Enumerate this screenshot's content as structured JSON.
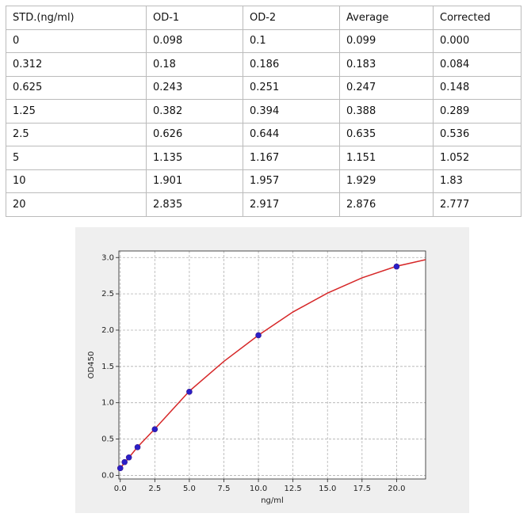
{
  "table": {
    "header": [
      "STD.(ng/ml)",
      "OD-1",
      "OD-2",
      "Average",
      "Corrected"
    ],
    "rows": [
      [
        "0",
        "0.098",
        "0.1",
        "0.099",
        "0.000"
      ],
      [
        "0.312",
        "0.18",
        "0.186",
        "0.183",
        "0.084"
      ],
      [
        "0.625",
        "0.243",
        "0.251",
        "0.247",
        "0.148"
      ],
      [
        "1.25",
        "0.382",
        "0.394",
        "0.388",
        "0.289"
      ],
      [
        "2.5",
        "0.626",
        "0.644",
        "0.635",
        "0.536"
      ],
      [
        "5",
        "1.135",
        "1.167",
        "1.151",
        "1.052"
      ],
      [
        "10",
        "1.901",
        "1.957",
        "1.929",
        "1.83"
      ],
      [
        "20",
        "2.835",
        "2.917",
        "2.876",
        "2.777"
      ]
    ]
  },
  "chart_data": {
    "type": "scatter",
    "x_label": "ng/ml",
    "y_label": "OD450",
    "x": [
      0,
      0.312,
      0.625,
      1.25,
      2.5,
      5,
      10,
      20
    ],
    "values": [
      0.099,
      0.183,
      0.247,
      0.388,
      0.635,
      1.151,
      1.929,
      2.876
    ],
    "color": "#2a1fc8",
    "fit_x": [
      0,
      1.25,
      2.5,
      5,
      7.5,
      10,
      12.5,
      15,
      17.5,
      20,
      22.1
    ],
    "fit_values": [
      0.1,
      0.39,
      0.64,
      1.16,
      1.57,
      1.93,
      2.25,
      2.51,
      2.72,
      2.88,
      2.97
    ],
    "fit_color": "#d62728",
    "xlim": [
      -0.1,
      22.1
    ],
    "ylim": [
      -0.05,
      3.09
    ],
    "xticks": [
      {
        "value": 0,
        "label": "0.0"
      },
      2.5,
      {
        "value": 5,
        "label": "5.0"
      },
      7.5,
      {
        "value": 10,
        "label": "10.0"
      },
      12.5,
      {
        "value": 15,
        "label": "15.0"
      },
      17.5,
      {
        "value": 20,
        "label": "20.0"
      }
    ],
    "yticks": [
      {
        "value": 0,
        "label": "0.0"
      },
      0.5,
      {
        "value": 1,
        "label": "1.0"
      },
      1.5,
      {
        "value": 2,
        "label": "2.0"
      },
      2.5,
      {
        "value": 3,
        "label": "3.0"
      }
    ],
    "grid": true
  }
}
